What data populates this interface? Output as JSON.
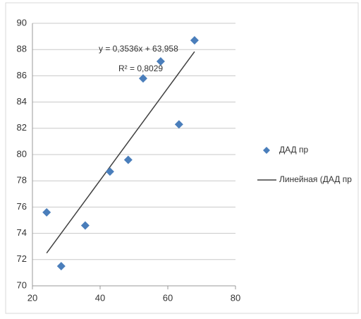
{
  "chart_data": {
    "type": "scatter",
    "series": [
      {
        "name": "ДАД пр",
        "color": "#4a7ebb",
        "x": [
          24.2,
          28.5,
          35.6,
          42.9,
          48.3,
          52.7,
          57.9,
          63.3,
          67.9
        ],
        "values": [
          75.6,
          71.5,
          74.6,
          78.7,
          79.6,
          85.8,
          87.1,
          82.3,
          88.7
        ]
      }
    ],
    "trendline": {
      "name": "Линейная (ДАД пр",
      "color": "#404040",
      "equation": "y = 0,3536x + 63,958",
      "r_squared": "R² = 0,8029"
    },
    "xlim": [
      20,
      80
    ],
    "xticks": [
      20,
      40,
      60,
      80
    ],
    "ylim": [
      70,
      90
    ],
    "yticks": [
      70,
      72,
      74,
      76,
      78,
      80,
      82,
      84,
      86,
      88,
      90
    ],
    "grid": true,
    "legend": "right"
  }
}
